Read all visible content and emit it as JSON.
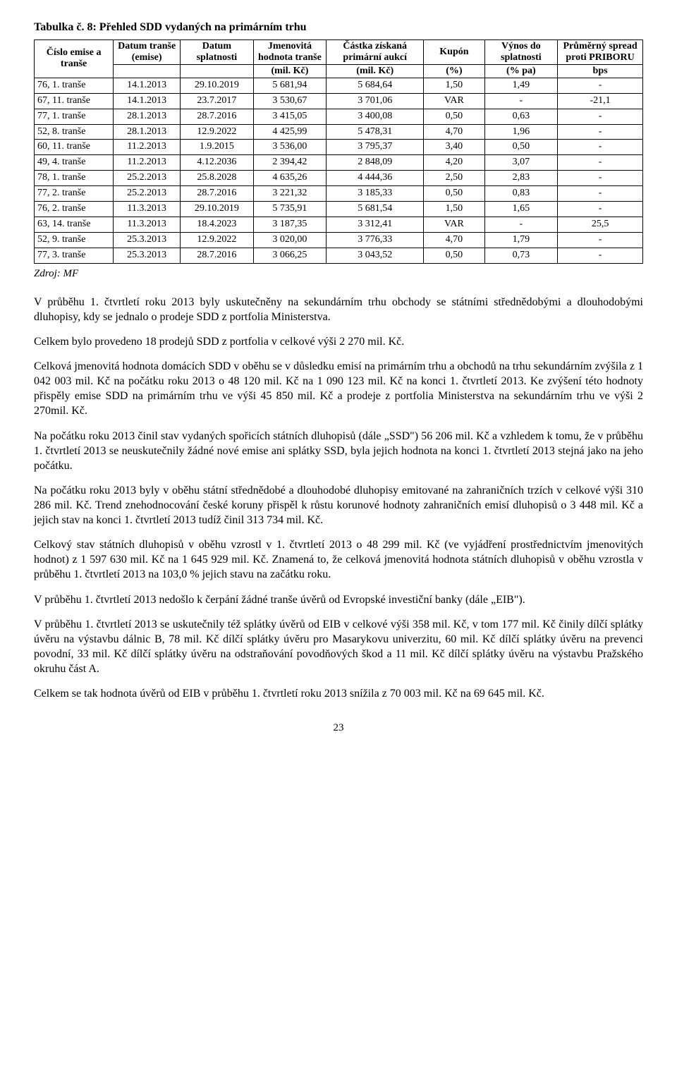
{
  "table": {
    "title": "Tabulka č. 8: Přehled SDD vydaných na primárním trhu",
    "headers": [
      "Číslo emise a tranše",
      "Datum tranše (emise)",
      "Datum splatnosti",
      "Jmenovitá hodnota tranše",
      "Částka získaná primární aukcí",
      "Kupón",
      "Výnos do splatnosti",
      "Průměrný spread proti PRIBORU"
    ],
    "units": [
      "",
      "",
      "",
      "(mil. Kč)",
      "(mil. Kč)",
      "(%)",
      "(% pa)",
      "bps"
    ],
    "rows": [
      [
        "76, 1. tranše",
        "14.1.2013",
        "29.10.2019",
        "5 681,94",
        "5 684,64",
        "1,50",
        "1,49",
        "-"
      ],
      [
        "67, 11. tranše",
        "14.1.2013",
        "23.7.2017",
        "3 530,67",
        "3 701,06",
        "VAR",
        "-",
        "-21,1"
      ],
      [
        "77, 1. tranše",
        "28.1.2013",
        "28.7.2016",
        "3 415,05",
        "3 400,08",
        "0,50",
        "0,63",
        "-"
      ],
      [
        "52, 8. tranše",
        "28.1.2013",
        "12.9.2022",
        "4 425,99",
        "5 478,31",
        "4,70",
        "1,96",
        "-"
      ],
      [
        "60, 11. tranše",
        "11.2.2013",
        "1.9.2015",
        "3 536,00",
        "3 795,37",
        "3,40",
        "0,50",
        "-"
      ],
      [
        "49, 4. tranše",
        "11.2.2013",
        "4.12.2036",
        "2 394,42",
        "2 848,09",
        "4,20",
        "3,07",
        "-"
      ],
      [
        "78, 1. tranše",
        "25.2.2013",
        "25.8.2028",
        "4 635,26",
        "4 444,36",
        "2,50",
        "2,83",
        "-"
      ],
      [
        "77, 2. tranše",
        "25.2.2013",
        "28.7.2016",
        "3 221,32",
        "3 185,33",
        "0,50",
        "0,83",
        "-"
      ],
      [
        "76, 2. tranše",
        "11.3.2013",
        "29.10.2019",
        "5 735,91",
        "5 681,54",
        "1,50",
        "1,65",
        "-"
      ],
      [
        "63, 14. tranše",
        "11.3.2013",
        "18.4.2023",
        "3 187,35",
        "3 312,41",
        "VAR",
        "-",
        "25,5"
      ],
      [
        "52, 9. tranše",
        "25.3.2013",
        "12.9.2022",
        "3 020,00",
        "3 776,33",
        "4,70",
        "1,79",
        "-"
      ],
      [
        "77, 3. tranše",
        "25.3.2013",
        "28.7.2016",
        "3 066,25",
        "3 043,52",
        "0,50",
        "0,73",
        "-"
      ]
    ],
    "source": "Zdroj: MF"
  },
  "paragraphs": [
    "V průběhu 1. čtvrtletí roku 2013 byly uskutečněny na sekundárním trhu obchody se státními střednědobými a dlouhodobými dluhopisy, kdy se jednalo o prodeje SDD z portfolia Ministerstva.",
    "Celkem bylo provedeno 18 prodejů SDD z portfolia v celkové výši 2 270 mil. Kč.",
    "Celková jmenovitá hodnota domácích SDD v oběhu se v důsledku emisí na primárním trhu a obchodů na trhu sekundárním zvýšila z 1 042 003 mil. Kč na počátku roku 2013 o 48 120 mil. Kč na 1 090 123 mil. Kč na konci 1. čtvrtletí 2013. Ke zvýšení této hodnoty přispěly emise SDD na primárním trhu ve výši 45 850 mil. Kč a prodeje z portfolia Ministerstva na sekundárním trhu ve výši 2 270mil. Kč.",
    "Na počátku roku 2013 činil stav vydaných spořicích státních dluhopisů (dále „SSD\") 56 206 mil. Kč a vzhledem k tomu, že v průběhu 1. čtvrtletí 2013 se neuskutečnily žádné nové emise ani splátky SSD, byla jejich hodnota na konci 1. čtvrtletí 2013 stejná jako na jeho počátku.",
    "Na počátku roku 2013 byly v oběhu státní střednědobé a dlouhodobé dluhopisy emitované na zahraničních trzích v celkové výši 310 286 mil. Kč. Trend znehodnocování české koruny přispěl k růstu korunové hodnoty zahraničních emisí dluhopisů o 3 448 mil. Kč a jejich stav na konci 1. čtvrtletí 2013 tudíž činil 313 734 mil. Kč.",
    "Celkový stav státních dluhopisů v oběhu vzrostl v 1. čtvrtletí 2013 o 48 299 mil. Kč (ve vyjádření prostřednictvím jmenovitých hodnot) z 1 597 630 mil. Kč na 1 645 929 mil. Kč. Znamená to, že celková jmenovitá hodnota státních dluhopisů v oběhu vzrostla v průběhu 1. čtvrtletí 2013 na 103,0 % jejich stavu na začátku roku.",
    "V průběhu 1. čtvrtletí 2013 nedošlo k čerpání žádné tranše úvěrů od Evropské investiční banky (dále „EIB\").",
    "V průběhu 1. čtvrtletí 2013 se uskutečnily též splátky úvěrů od EIB v celkové výši 358 mil. Kč, v tom 177 mil. Kč činily dílčí splátky úvěru na výstavbu dálnic B, 78 mil. Kč dílčí splátky úvěru pro Masarykovu univerzitu, 60 mil. Kč dílčí splátky úvěru na prevenci povodní, 33 mil. Kč dílčí splátky úvěru na odstraňování povodňových škod a 11 mil. Kč dílčí splátky úvěru na výstavbu Pražského okruhu část A.",
    "Celkem se tak hodnota úvěrů od EIB v průběhu 1. čtvrtletí roku 2013 snížila z 70 003 mil. Kč na 69 645 mil. Kč."
  ],
  "page_number": "23",
  "styling": {
    "font_family": "Times New Roman",
    "body_font_size_pt": 12,
    "table_font_size_pt": 11,
    "text_color": "#000000",
    "background_color": "#ffffff",
    "border_color": "#000000"
  }
}
